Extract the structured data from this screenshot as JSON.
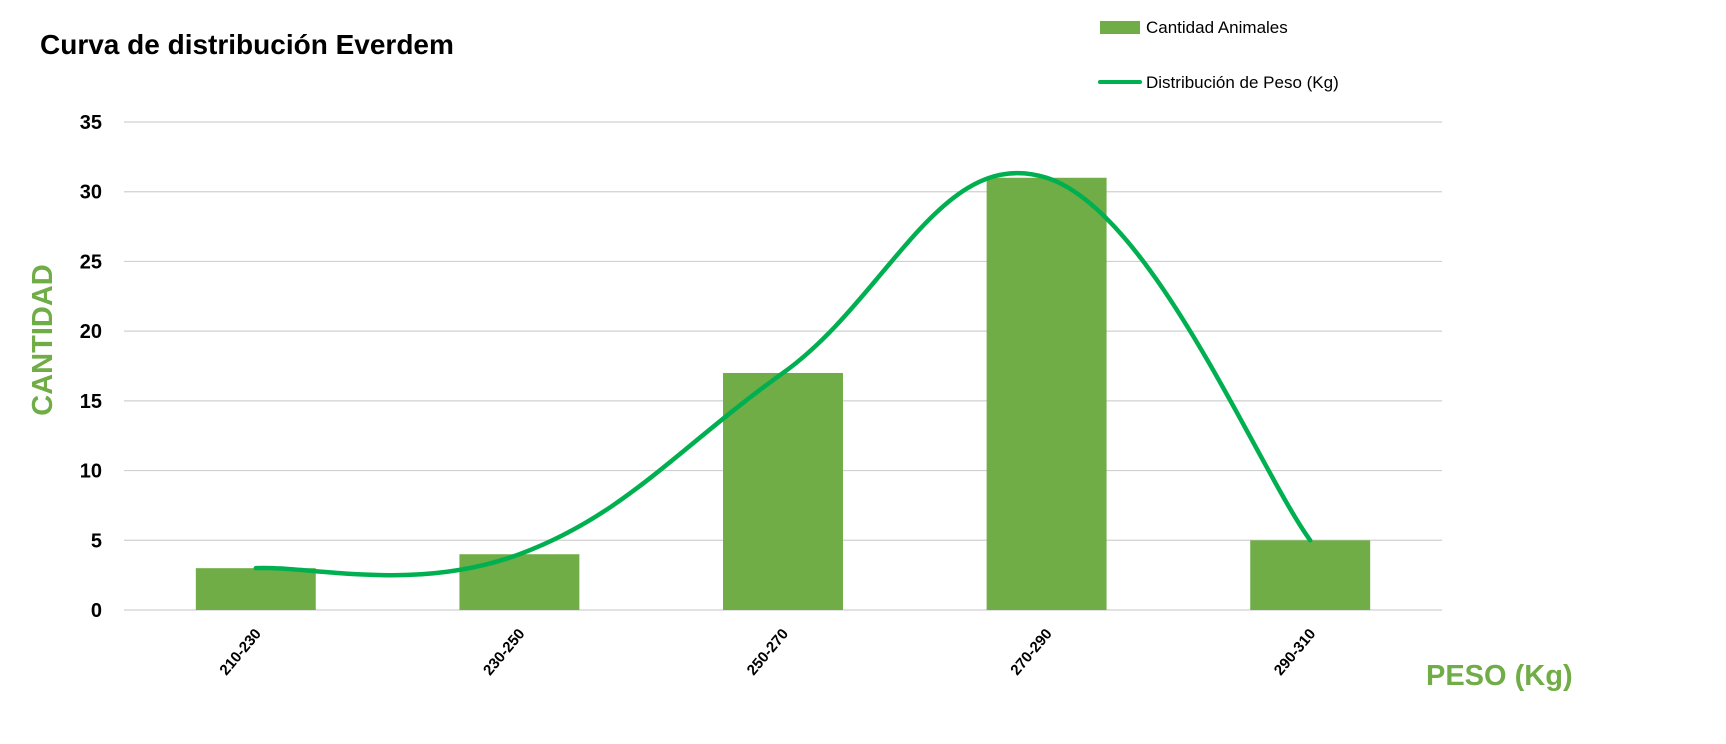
{
  "chart_data": {
    "type": "bar",
    "title": "Curva de distribución Everdem",
    "xlabel": "PESO (Kg)",
    "ylabel": "CANTIDAD",
    "categories": [
      "210-230",
      "230-250",
      "250-270",
      "270-290",
      "290-310"
    ],
    "ylim": [
      0,
      35
    ],
    "yticks": [
      0,
      5,
      10,
      15,
      20,
      25,
      30,
      35
    ],
    "grid": true,
    "legend_position": "top-right",
    "series": [
      {
        "name": "Cantidad Animales",
        "type": "bar",
        "values": [
          3,
          4,
          17,
          31,
          5
        ],
        "color": "#70ad47"
      },
      {
        "name": "Distribución de Peso (Kg)",
        "type": "smooth-line",
        "values": [
          3,
          4,
          17,
          31,
          5
        ],
        "color": "#00b050"
      }
    ],
    "axis_title_color": "#70ad47"
  }
}
